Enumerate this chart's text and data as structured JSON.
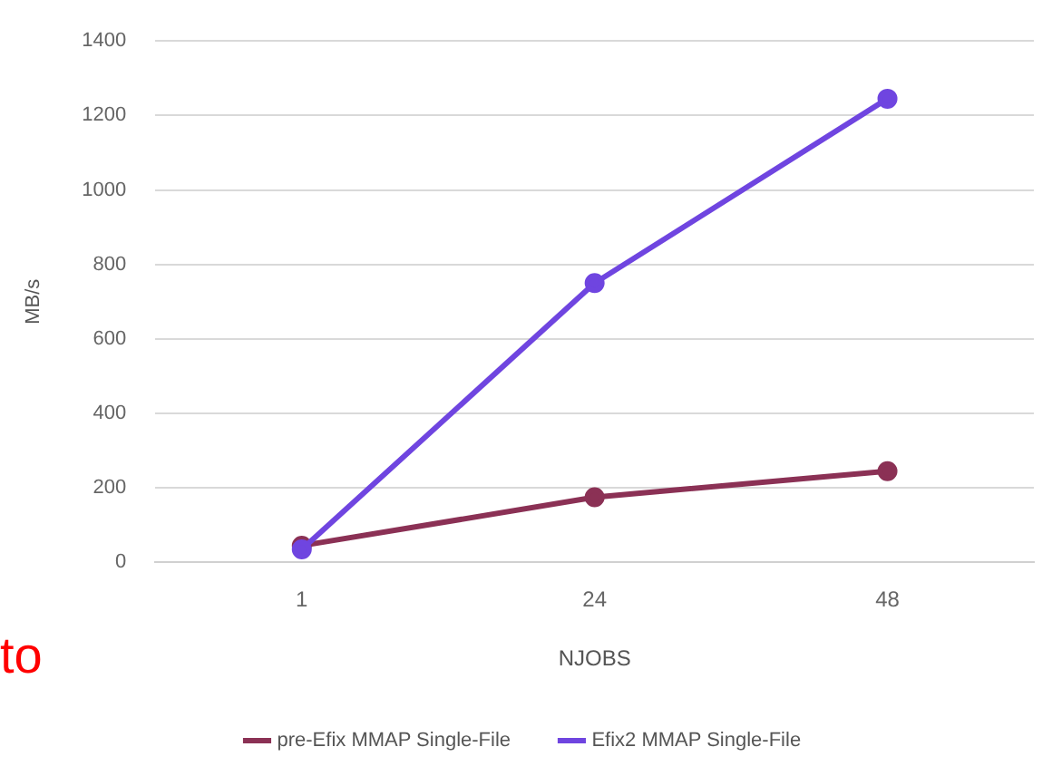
{
  "chart_data": {
    "type": "line",
    "xlabel": "NJOBS",
    "ylabel": "MB/s",
    "categories": [
      "1",
      "24",
      "48"
    ],
    "series": [
      {
        "name": "pre-Efix MMAP Single-File",
        "color": "#8b3155",
        "values": [
          45,
          175,
          245
        ]
      },
      {
        "name": "Efix2 MMAP Single-File",
        "color": "#6f45e0",
        "values": [
          35,
          750,
          1245
        ]
      }
    ],
    "ylim": [
      0,
      1400
    ],
    "yticks": [
      0,
      200,
      400,
      600,
      800,
      1000,
      1200,
      1400
    ],
    "grid": "y",
    "legend": "bottom",
    "marker": "circle",
    "line_style": "solid",
    "annotations": [
      "to"
    ]
  }
}
